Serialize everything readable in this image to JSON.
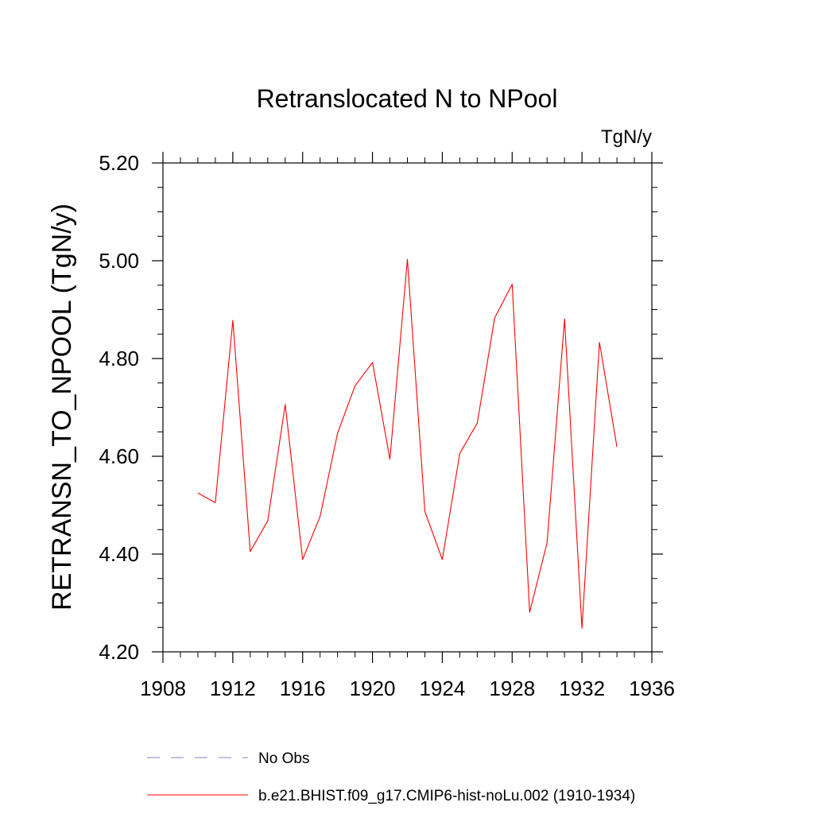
{
  "chart_data": {
    "type": "line",
    "title": "Retranslocated N to NPool",
    "units_label": "TgN/y",
    "ylabel": "RETRANSN_TO_NPOOL  (TgN/y)",
    "xlabel": "",
    "xlim": [
      1908,
      1936
    ],
    "ylim": [
      4.2,
      5.2
    ],
    "x_ticks": [
      1908,
      1912,
      1916,
      1920,
      1924,
      1928,
      1932,
      1936
    ],
    "x_tick_labels": [
      "1908",
      "1912",
      "1916",
      "1920",
      "1924",
      "1928",
      "1932",
      "1936"
    ],
    "y_ticks": [
      4.2,
      4.4,
      4.6,
      4.8,
      5.0,
      5.2
    ],
    "y_tick_labels": [
      "4.20",
      "4.40",
      "4.60",
      "4.80",
      "5.00",
      "5.20"
    ],
    "x_minor_step": 1,
    "y_minor_step": 0.05,
    "grid": false,
    "legend_placement": "bottom",
    "legend": [
      {
        "name": "No Obs",
        "color": "#8080c0",
        "style": "dashed"
      },
      {
        "name": "b.e21.BHIST.f09_g17.CMIP6-hist-noLu.002 (1910-1934)",
        "color": "#ff0000",
        "style": "solid"
      }
    ],
    "series": [
      {
        "name": "b.e21.BHIST.f09_g17.CMIP6-hist-noLu.002 (1910-1934)",
        "color": "#ff0000",
        "x": [
          1910,
          1911,
          1912,
          1913,
          1914,
          1915,
          1916,
          1917,
          1918,
          1919,
          1920,
          1921,
          1922,
          1923,
          1924,
          1925,
          1926,
          1927,
          1928,
          1929,
          1930,
          1931,
          1932,
          1933,
          1934
        ],
        "values": [
          4.525,
          4.505,
          4.878,
          4.405,
          4.468,
          4.706,
          4.389,
          4.477,
          4.647,
          4.744,
          4.792,
          4.594,
          5.003,
          4.487,
          4.389,
          4.606,
          4.668,
          4.883,
          4.952,
          4.281,
          4.423,
          4.881,
          4.248,
          4.833,
          4.619
        ]
      }
    ]
  }
}
